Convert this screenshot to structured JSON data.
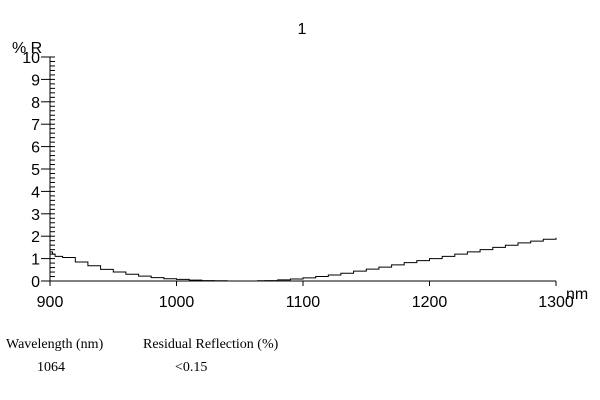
{
  "chart_data": {
    "type": "line",
    "title": "1",
    "ylabel": "% R",
    "xlabel": "nm",
    "xlim": [
      900,
      1300
    ],
    "ylim": [
      0,
      10
    ],
    "x_ticks": [
      900,
      1000,
      1100,
      1200,
      1300
    ],
    "y_ticks": [
      0,
      1,
      2,
      3,
      4,
      5,
      6,
      7,
      8,
      9,
      10
    ],
    "grid": false,
    "series": [
      {
        "x": [
          900,
          902,
          904,
          910,
          920,
          930,
          940,
          950,
          960,
          970,
          980,
          990,
          1000,
          1010,
          1020,
          1030,
          1040,
          1050,
          1060,
          1064,
          1070,
          1080,
          1090,
          1100,
          1110,
          1120,
          1130,
          1140,
          1150,
          1160,
          1170,
          1180,
          1190,
          1200,
          1210,
          1220,
          1230,
          1240,
          1250,
          1260,
          1270,
          1280,
          1290,
          1300
        ],
        "y": [
          1.3,
          1.2,
          1.1,
          1.05,
          0.85,
          0.68,
          0.52,
          0.4,
          0.3,
          0.22,
          0.15,
          0.1,
          0.07,
          0.04,
          0.02,
          0.01,
          0.0,
          0.0,
          0.0,
          0.01,
          0.02,
          0.05,
          0.09,
          0.14,
          0.2,
          0.27,
          0.35,
          0.44,
          0.53,
          0.62,
          0.72,
          0.82,
          0.91,
          1.0,
          1.1,
          1.2,
          1.3,
          1.4,
          1.5,
          1.6,
          1.7,
          1.78,
          1.86,
          1.93
        ],
        "color": "#000000"
      }
    ]
  },
  "info": {
    "wavelength_header": "Wavelength (nm)",
    "wavelength_value": "1064",
    "reflection_header": "Residual Reflection (%)",
    "reflection_value": "<0.15"
  }
}
